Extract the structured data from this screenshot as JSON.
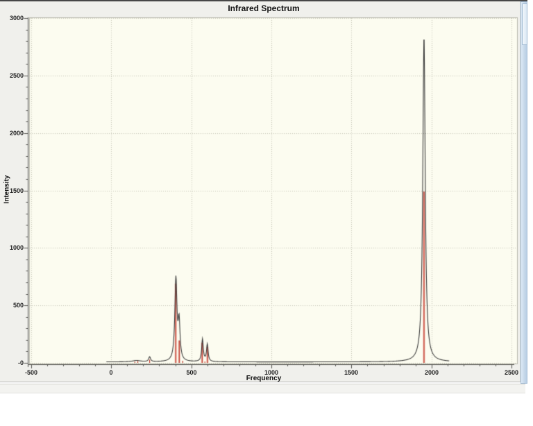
{
  "window": {
    "top_border_color": "#474747",
    "panel_bg": "#f0f0ec",
    "status_bar_text": ""
  },
  "chart_data": {
    "type": "line",
    "title": "Infrared Spectrum",
    "xlabel": "Frequency",
    "ylabel": "Intensity",
    "xlim": [
      -500,
      2500
    ],
    "ylim": [
      0,
      3000
    ],
    "x_ticks": [
      -500,
      0,
      500,
      1000,
      1500,
      2000,
      2500
    ],
    "x_tick_labels": [
      "-500",
      "0",
      "500",
      "1000",
      "1500",
      "2000",
      "2500"
    ],
    "y_ticks": [
      0,
      500,
      1000,
      1500,
      2000,
      2500,
      3000
    ],
    "y_tick_labels": [
      "-0",
      "500",
      "1000",
      "1500",
      "2000",
      "2500",
      "3000"
    ],
    "minor_tick_interval": 100,
    "grid": "dotted-at-major-ticks",
    "legend": "none",
    "plot_bg": "#fcfcf0",
    "grid_color": "#c6c6b6",
    "axis_color": "#555550",
    "series": [
      {
        "name": "broadened-spectrum-curve",
        "type": "lorentzian-curve",
        "color": "#3a3a3a",
        "baseline_intensity": 8,
        "x_start": -30,
        "x_end": 2110,
        "peaks": [
          {
            "frequency": 158,
            "intensity": 12,
            "width": 30
          },
          {
            "frequency": 240,
            "intensity": 42,
            "width": 7
          },
          {
            "frequency": 404,
            "intensity": 715,
            "width": 8
          },
          {
            "frequency": 424,
            "intensity": 320,
            "width": 7
          },
          {
            "frequency": 570,
            "intensity": 196,
            "width": 6
          },
          {
            "frequency": 600,
            "intensity": 150,
            "width": 6
          },
          {
            "frequency": 1953,
            "intensity": 2836,
            "width": 9
          }
        ]
      },
      {
        "name": "stick-spectrum",
        "type": "sticks",
        "color": "#c0392b",
        "halo_color": "rgba(224,130,120,0.55)",
        "sticks": [
          {
            "frequency": 148,
            "intensity": 10
          },
          {
            "frequency": 166,
            "intensity": 16
          },
          {
            "frequency": 240,
            "intensity": 28
          },
          {
            "frequency": 403,
            "intensity": 690
          },
          {
            "frequency": 425,
            "intensity": 195
          },
          {
            "frequency": 447,
            "intensity": 18
          },
          {
            "frequency": 568,
            "intensity": 176
          },
          {
            "frequency": 585,
            "intensity": 12
          },
          {
            "frequency": 601,
            "intensity": 140
          },
          {
            "frequency": 1953,
            "intensity": 1490
          }
        ]
      }
    ]
  }
}
